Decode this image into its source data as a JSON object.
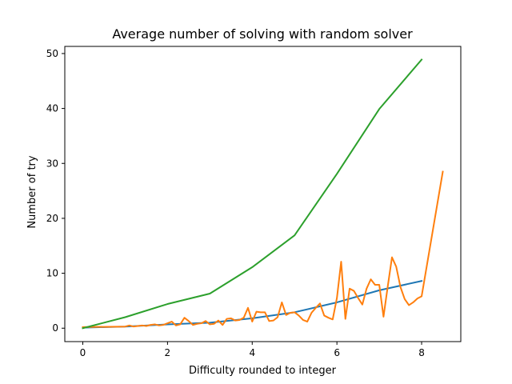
{
  "chart_data": {
    "type": "line",
    "title": "Average number of solving with random solver",
    "xlabel": "Difficulty rounded to integer",
    "ylabel": "Number of try",
    "xlim": [
      -0.425,
      8.925
    ],
    "ylim": [
      -2.44,
      51.3
    ],
    "x_ticks": [
      0,
      2,
      4,
      6,
      8
    ],
    "y_ticks": [
      0,
      10,
      20,
      30,
      40,
      50
    ],
    "grid": false,
    "series": [
      {
        "color": "#1f77b4",
        "x": [
          0,
          1,
          2,
          3,
          4,
          5,
          6,
          7,
          8
        ],
        "y": [
          0.1,
          0.3,
          0.7,
          1.0,
          1.8,
          2.9,
          4.7,
          6.9,
          8.6
        ]
      },
      {
        "color": "#ff7f0e",
        "x": [
          0,
          1.0,
          1.1,
          1.2,
          1.3,
          1.4,
          1.5,
          1.6,
          1.7,
          1.8,
          1.9,
          2.0,
          2.1,
          2.2,
          2.3,
          2.4,
          2.5,
          2.6,
          2.7,
          2.8,
          2.9,
          3.0,
          3.1,
          3.2,
          3.3,
          3.4,
          3.5,
          3.6,
          3.7,
          3.8,
          3.9,
          4.0,
          4.1,
          4.2,
          4.3,
          4.4,
          4.5,
          4.6,
          4.7,
          4.8,
          4.9,
          5.0,
          5.1,
          5.2,
          5.3,
          5.4,
          5.5,
          5.6,
          5.7,
          5.8,
          5.9,
          6.0,
          6.1,
          6.2,
          6.3,
          6.4,
          6.5,
          6.6,
          6.7,
          6.8,
          6.9,
          7.0,
          7.1,
          7.2,
          7.3,
          7.4,
          7.5,
          7.6,
          7.7,
          7.8,
          7.9,
          8.0,
          8.5
        ],
        "y": [
          0.2,
          0.3,
          0.5,
          0.3,
          0.4,
          0.5,
          0.4,
          0.6,
          0.7,
          0.5,
          0.6,
          0.9,
          1.2,
          0.5,
          0.7,
          1.9,
          1.3,
          0.6,
          0.8,
          0.9,
          1.3,
          0.7,
          0.8,
          1.4,
          0.6,
          1.7,
          1.8,
          1.4,
          1.5,
          1.9,
          3.7,
          1.2,
          3.0,
          2.9,
          2.9,
          1.3,
          1.4,
          2.0,
          4.7,
          2.4,
          2.8,
          2.9,
          2.3,
          1.5,
          1.2,
          2.8,
          3.7,
          4.5,
          2.3,
          1.9,
          1.6,
          5.5,
          12.1,
          1.7,
          7.2,
          6.8,
          5.5,
          4.3,
          7.2,
          8.9,
          7.9,
          7.9,
          2.1,
          7.6,
          12.9,
          11.2,
          7.5,
          5.3,
          4.2,
          4.7,
          5.4,
          5.8,
          28.5
        ]
      },
      {
        "color": "#2ca02c",
        "x": [
          0,
          1,
          2,
          3,
          4,
          5,
          6,
          7,
          8
        ],
        "y": [
          0.0,
          2.0,
          4.4,
          6.3,
          11.1,
          16.9,
          28.1,
          39.9,
          48.9
        ]
      }
    ]
  }
}
